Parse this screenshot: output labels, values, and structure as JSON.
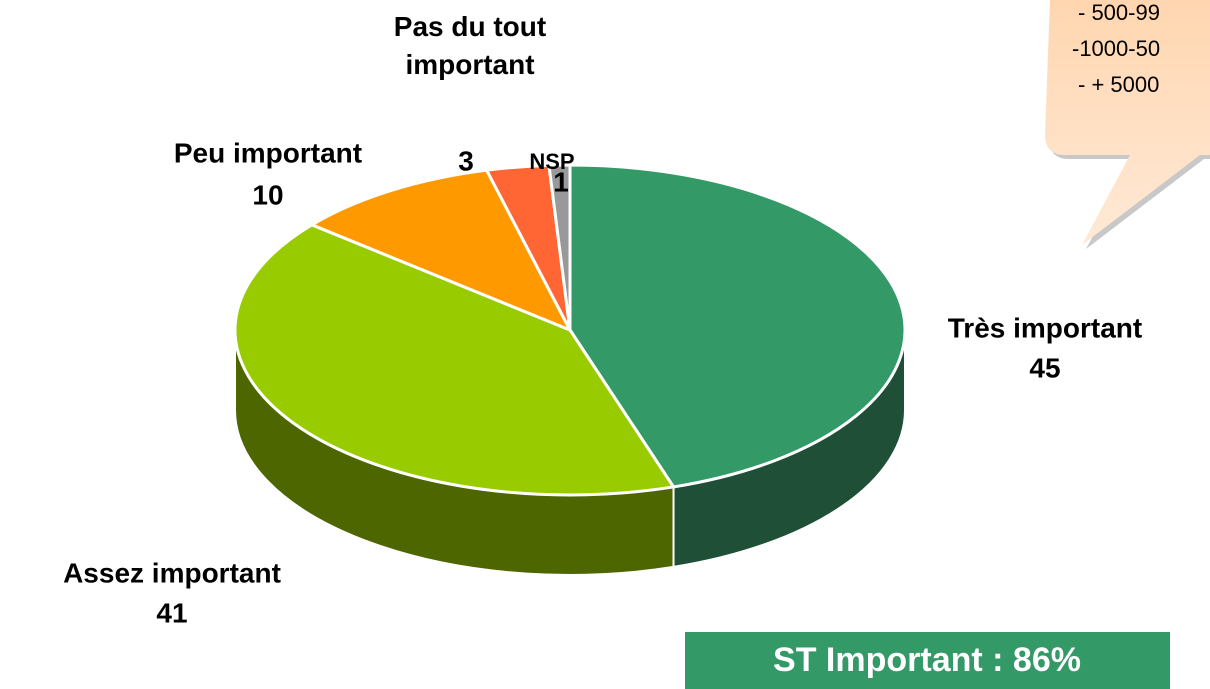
{
  "chart_data": {
    "type": "pie",
    "categories": [
      "Très important",
      "Assez important",
      "Peu important",
      "Pas du tout important",
      "NSP"
    ],
    "values": [
      45,
      41,
      10,
      3,
      1
    ],
    "colors": [
      "#339966",
      "#99cc00",
      "#ff9900",
      "#ff6633",
      "#999999"
    ],
    "side_colors": [
      "#1f4f37",
      "#4d6600",
      "#b36b00",
      "#b3472a",
      "#666666"
    ]
  },
  "callout": {
    "lines": [
      "- 500-99",
      "-1000-50",
      "- + 5000"
    ]
  },
  "badge": {
    "text": "ST Important : 86%"
  }
}
